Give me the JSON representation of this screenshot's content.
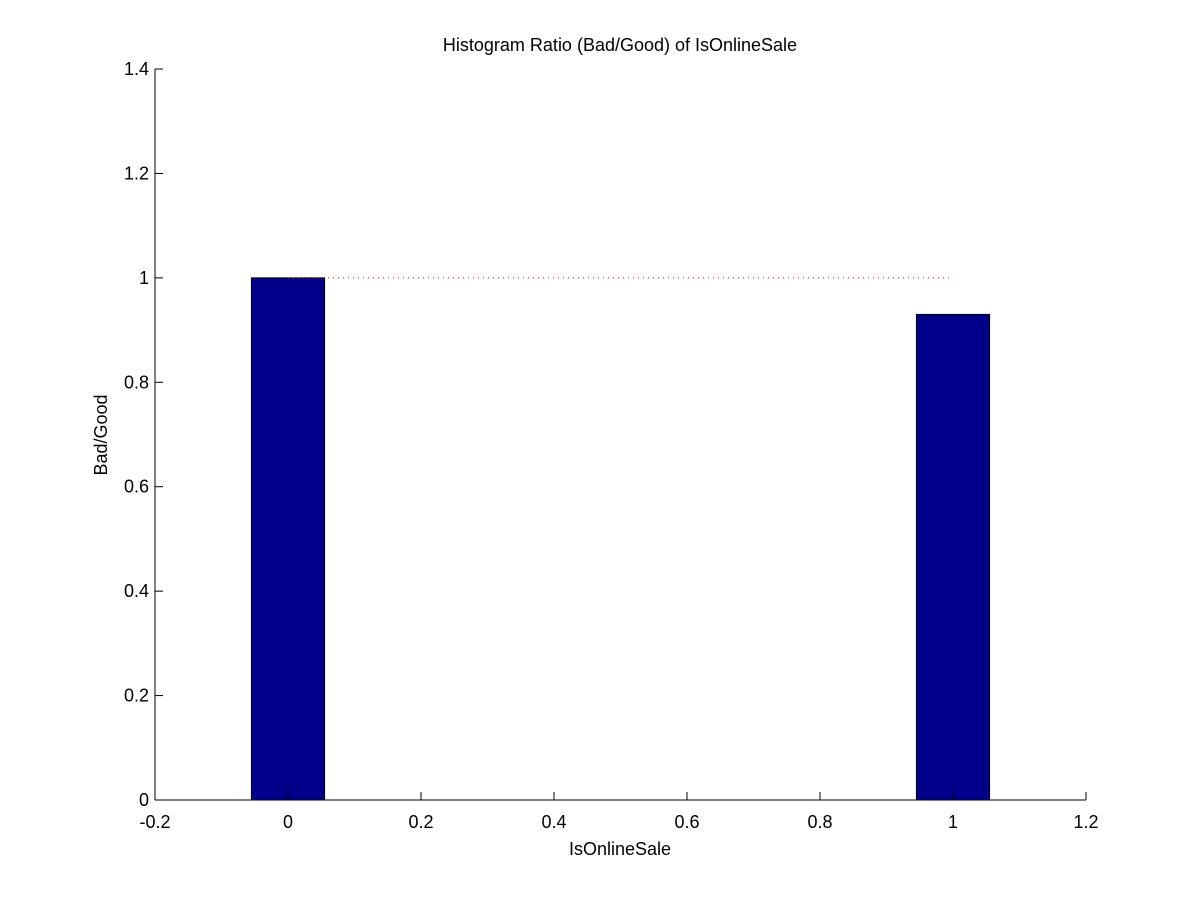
{
  "chart_data": {
    "type": "bar",
    "title": "Histogram Ratio (Bad/Good) of IsOnlineSale",
    "xlabel": "IsOnlineSale",
    "ylabel": "Bad/Good",
    "xlim": [
      -0.2,
      1.2
    ],
    "ylim": [
      0,
      1.4
    ],
    "x_ticks": [
      -0.2,
      0,
      0.2,
      0.4,
      0.6,
      0.8,
      1,
      1.2
    ],
    "x_tick_labels": [
      "-0.2",
      "0",
      "0.2",
      "0.4",
      "0.6",
      "0.8",
      "1",
      "1.2"
    ],
    "y_ticks": [
      0,
      0.2,
      0.4,
      0.6,
      0.8,
      1,
      1.2,
      1.4
    ],
    "y_tick_labels": [
      "0",
      "0.2",
      "0.4",
      "0.6",
      "0.8",
      "1",
      "1.2",
      "1.4"
    ],
    "x": [
      0,
      1
    ],
    "values": [
      1.0,
      0.93
    ],
    "bar_width": 0.11,
    "bar_color": "#00008B",
    "reference_line": {
      "y": 1.0,
      "x_range": [
        0,
        1
      ],
      "style": "dotted",
      "color": "#ff0000"
    },
    "grid": false,
    "legend": "none"
  }
}
